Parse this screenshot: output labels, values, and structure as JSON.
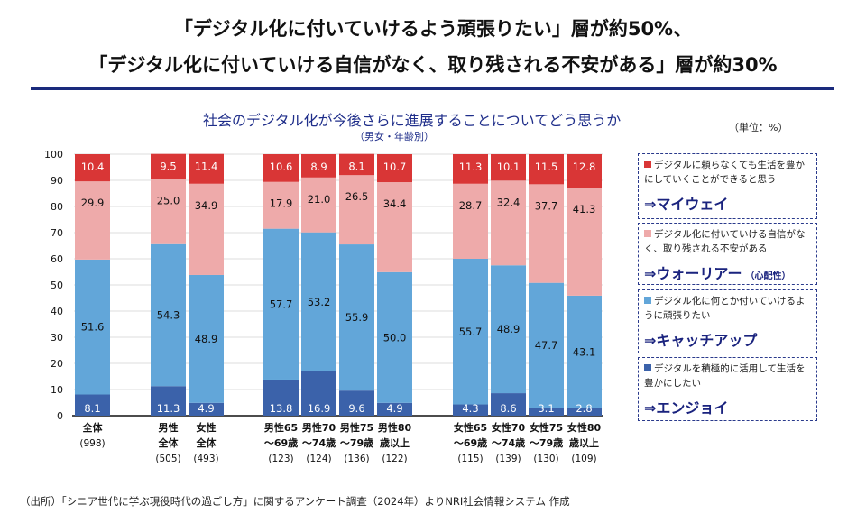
{
  "headline": {
    "line1": "「デジタル化に付いていけるよう頑張りたい」層が約50%、",
    "line2": "「デジタル化に付いていける自信がなく、取り残される不安がある」層が約30%"
  },
  "unit_label": "（単位：%）",
  "source": "（出所）「シニア世代に学ぶ現役時代の過ごし方」に関するアンケート調査（2024年）よりNRI社会情報システム 作成",
  "legend": [
    {
      "swatch_color": "#d93636",
      "desc": "デジタルに頼らなくても生活を豊かにしていくことができると思う",
      "name": "⇒マイウェイ",
      "sub": ""
    },
    {
      "swatch_color": "#eeaaaa",
      "desc": "デジタル化に付いていける自信がなく、取り残される不安がある",
      "name": "⇒ウォーリアー",
      "sub": "（心配性）"
    },
    {
      "swatch_color": "#62a6d9",
      "desc": "デジタル化に何とか付いていけるように頑張りたい",
      "name": "⇒キャッチアップ",
      "sub": ""
    },
    {
      "swatch_color": "#3b62aa",
      "desc": "デジタルを積極的に活用して生活を豊かにしたい",
      "name": "⇒エンジョイ",
      "sub": ""
    }
  ],
  "chart_data": {
    "type": "bar",
    "stacked": true,
    "title": "社会のデジタル化が今後さらに進展することについてどう思うか",
    "subtitle": "（男女・年齢別）",
    "xlabel": "",
    "ylabel": "",
    "ylim": [
      0,
      100
    ],
    "yticks": [
      0,
      10,
      20,
      30,
      40,
      50,
      60,
      70,
      80,
      90,
      100
    ],
    "grid": true,
    "legend_position": "right",
    "categories": [
      {
        "label_lines": [
          "全体",
          "(998)"
        ],
        "group": 0
      },
      {
        "label_lines": [
          "男性",
          "全体",
          "(505)"
        ],
        "group": 1
      },
      {
        "label_lines": [
          "女性",
          "全体",
          "(493)"
        ],
        "group": 1
      },
      {
        "label_lines": [
          "男性65",
          "〜69歳",
          "(123)"
        ],
        "group": 2
      },
      {
        "label_lines": [
          "男性70",
          "〜74歳",
          "(124)"
        ],
        "group": 2
      },
      {
        "label_lines": [
          "男性75",
          "〜79歳",
          "(136)"
        ],
        "group": 2
      },
      {
        "label_lines": [
          "男性80",
          "歳以上",
          "(122)"
        ],
        "group": 2
      },
      {
        "label_lines": [
          "女性65",
          "〜69歳",
          "(115)"
        ],
        "group": 3
      },
      {
        "label_lines": [
          "女性70",
          "〜74歳",
          "(139)"
        ],
        "group": 3
      },
      {
        "label_lines": [
          "女性75",
          "〜79歳",
          "(130)"
        ],
        "group": 3
      },
      {
        "label_lines": [
          "女性80",
          "歳以上",
          "(109)"
        ],
        "group": 3
      }
    ],
    "series": [
      {
        "name": "エンジョイ",
        "color": "#3b62aa",
        "label_color": "#ffffff",
        "values": [
          8.1,
          11.3,
          4.9,
          13.8,
          16.9,
          9.6,
          4.9,
          4.3,
          8.6,
          3.1,
          2.8
        ]
      },
      {
        "name": "キャッチアップ",
        "color": "#62a6d9",
        "label_color": "#111111",
        "values": [
          51.6,
          54.3,
          48.9,
          57.7,
          53.2,
          55.9,
          50.0,
          55.7,
          48.9,
          47.7,
          43.1
        ]
      },
      {
        "name": "ウォーリアー",
        "color": "#eeaaaa",
        "label_color": "#111111",
        "values": [
          29.9,
          25.0,
          34.9,
          17.9,
          21.0,
          26.5,
          34.4,
          28.7,
          32.4,
          37.7,
          41.3
        ]
      },
      {
        "name": "マイウェイ",
        "color": "#d93636",
        "label_color": "#ffffff",
        "values": [
          10.4,
          9.5,
          11.4,
          10.6,
          8.9,
          8.1,
          10.7,
          11.3,
          10.1,
          11.5,
          12.8
        ]
      }
    ]
  }
}
